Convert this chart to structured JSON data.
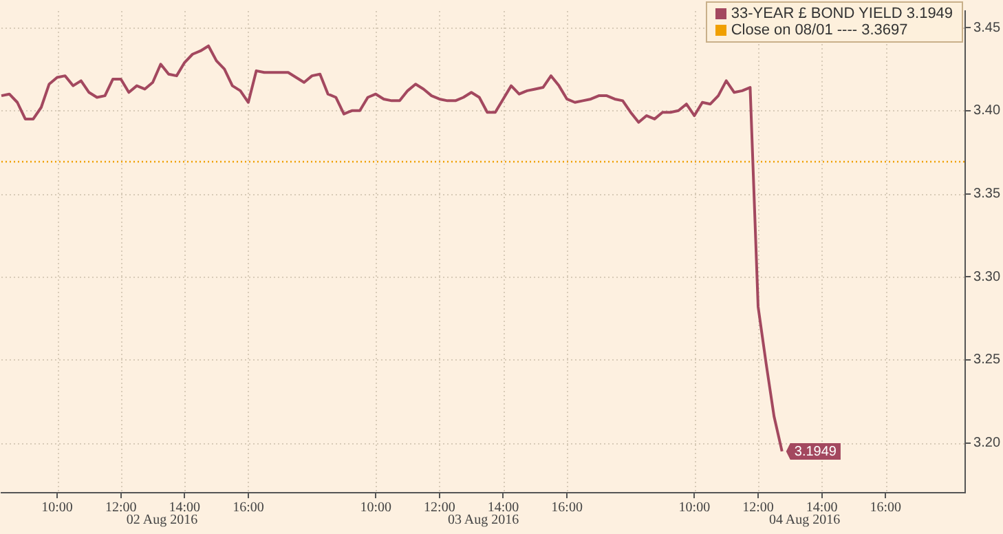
{
  "chart_data": {
    "type": "line",
    "categories": [
      null,
      null,
      null,
      null,
      null,
      null,
      null,
      "10:00",
      null,
      null,
      null,
      null,
      null,
      null,
      null,
      "12:00",
      null,
      null,
      null,
      null,
      null,
      null,
      null,
      "14:00",
      null,
      null,
      null,
      null,
      null,
      null,
      null,
      "16:00",
      null,
      null,
      null,
      null,
      null,
      null,
      null,
      null,
      null,
      null,
      null,
      null,
      null,
      null,
      null,
      "10:00",
      null,
      null,
      null,
      null,
      null,
      null,
      null,
      "12:00",
      null,
      null,
      null,
      null,
      null,
      null,
      null,
      "14:00",
      null,
      null,
      null,
      null,
      null,
      null,
      null,
      "16:00",
      null,
      null,
      null,
      null,
      null,
      null,
      null,
      null,
      null,
      null,
      null,
      null,
      null,
      null,
      null,
      "10:00",
      null,
      null,
      null,
      null,
      null,
      null,
      null,
      "12:00",
      null,
      null,
      null,
      null,
      null,
      null,
      null,
      "14:00",
      null,
      null,
      null,
      null,
      null,
      null,
      null,
      "16:00",
      null,
      null,
      null,
      null,
      null,
      null,
      null,
      null,
      null,
      null
    ],
    "annotations": [
      "02 Aug 2016",
      "03 Aug 2016",
      "04 Aug 2016"
    ],
    "ylim": [
      3.17,
      3.46
    ],
    "yticks": [
      {
        "value": 3.2,
        "label": "3.20"
      },
      {
        "value": 3.25,
        "label": "3.25"
      },
      {
        "value": 3.3,
        "label": "3.30"
      },
      {
        "value": 3.35,
        "label": "3.35"
      },
      {
        "value": 3.4,
        "label": "3.40"
      },
      {
        "value": 3.45,
        "label": "3.45"
      }
    ],
    "grid": true,
    "legend": "top right",
    "marker": "none",
    "line_style": "solid",
    "ref_lines": [
      {
        "axis": "y",
        "value": 3.3697,
        "label": "Close on 08/01 ---- 3.3697",
        "color": "#f0a000",
        "line_style": "dotted"
      }
    ],
    "series": [
      {
        "name": "33-YEAR £ BOND YIELD 3.1949",
        "color": "#a3485f",
        "values": [
          3.409,
          3.41,
          3.405,
          3.395,
          3.395,
          3.402,
          3.416,
          3.42,
          3.421,
          3.415,
          3.418,
          3.411,
          3.408,
          3.409,
          3.419,
          3.419,
          3.411,
          3.415,
          3.413,
          3.417,
          3.428,
          3.422,
          3.421,
          3.429,
          3.434,
          3.436,
          3.439,
          3.43,
          3.425,
          3.415,
          3.412,
          3.405,
          3.424,
          3.423,
          3.423,
          3.423,
          3.423,
          3.42,
          3.417,
          3.421,
          3.422,
          3.41,
          3.408,
          3.398,
          3.4,
          3.4,
          3.408,
          3.41,
          3.407,
          3.406,
          3.406,
          3.412,
          3.416,
          3.413,
          3.409,
          3.407,
          3.406,
          3.406,
          3.408,
          3.411,
          3.408,
          3.399,
          3.399,
          3.407,
          3.415,
          3.41,
          3.412,
          3.413,
          3.414,
          3.421,
          3.415,
          3.407,
          3.405,
          3.406,
          3.407,
          3.409,
          3.409,
          3.407,
          3.406,
          3.399,
          3.393,
          3.397,
          3.395,
          3.399,
          3.399,
          3.4,
          3.404,
          3.397,
          3.405,
          3.404,
          3.409,
          3.418,
          3.411,
          3.412,
          3.414,
          3.282,
          3.248,
          3.216,
          3.1949,
          null,
          null,
          null,
          null,
          null,
          null,
          null,
          null,
          null,
          null,
          null,
          null,
          null,
          null,
          null,
          null,
          null,
          null,
          null,
          null,
          null,
          null,
          null
        ],
        "value_labels": [
          null,
          null,
          null,
          null,
          null,
          null,
          null,
          null,
          null,
          null,
          null,
          null,
          null,
          null,
          null,
          null,
          null,
          null,
          null,
          null,
          null,
          null,
          null,
          null,
          null,
          null,
          null,
          null,
          null,
          null,
          null,
          null,
          null,
          null,
          null,
          null,
          null,
          null,
          null,
          null,
          null,
          null,
          null,
          null,
          null,
          null,
          null,
          null,
          null,
          null,
          null,
          null,
          null,
          null,
          null,
          null,
          null,
          null,
          null,
          null,
          null,
          null,
          null,
          null,
          null,
          null,
          null,
          null,
          null,
          null,
          null,
          null,
          null,
          null,
          null,
          null,
          null,
          null,
          null,
          null,
          null,
          null,
          null,
          null,
          null,
          null,
          null,
          null,
          null,
          null,
          null,
          null,
          null,
          null,
          null,
          null,
          null,
          null,
          "3.1949",
          null,
          null,
          null,
          null,
          null,
          null,
          null,
          null,
          null,
          null,
          null,
          null,
          null,
          null,
          null,
          null,
          null,
          null,
          null,
          null,
          null,
          null,
          null
        ]
      }
    ]
  }
}
